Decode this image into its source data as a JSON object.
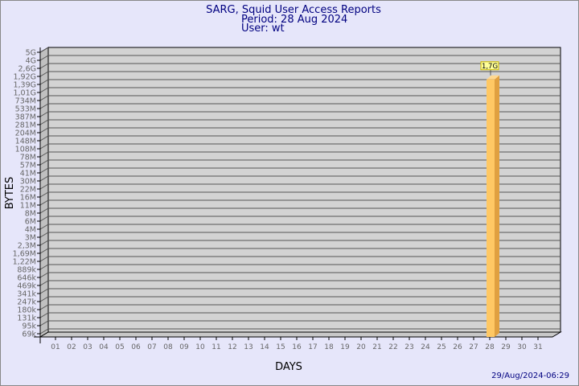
{
  "header": {
    "title": "SARG, Squid User Access Reports",
    "period": "Period: 28 Aug 2024",
    "user": "User: wt"
  },
  "footer": {
    "generated": "29/Aug/2024-06:29"
  },
  "colors": {
    "background": "#e6e6fa",
    "wall": "#d3d3d3",
    "bar": "#ffc864",
    "bar_side": "#e0a040",
    "text": "#000080",
    "label_bg": "#ffff99"
  },
  "chart_data": {
    "type": "bar",
    "title": "SARG, Squid User Access Reports",
    "xlabel": "DAYS",
    "ylabel": "BYTES",
    "y_scale": "log",
    "grid": true,
    "y_ticks": [
      "5G",
      "4G",
      "2,6G",
      "1,92G",
      "1,39G",
      "1,01G",
      "734M",
      "533M",
      "387M",
      "281M",
      "204M",
      "148M",
      "108M",
      "78M",
      "57M",
      "41M",
      "30M",
      "22M",
      "16M",
      "11M",
      "8M",
      "6M",
      "4M",
      "3M",
      "2,3M",
      "1,69M",
      "1,22M",
      "889k",
      "646k",
      "469k",
      "341k",
      "247k",
      "180k",
      "131k",
      "95k",
      "69k"
    ],
    "y_tick_values": [
      5000000000.0,
      4000000000.0,
      2600000000.0,
      1920000000.0,
      1390000000.0,
      1010000000.0,
      734000000.0,
      533000000.0,
      387000000.0,
      281000000.0,
      204000000.0,
      148000000.0,
      108000000.0,
      78000000.0,
      57000000.0,
      41000000.0,
      30000000.0,
      22000000.0,
      16000000.0,
      11000000.0,
      8000000.0,
      6000000.0,
      4000000.0,
      3000000.0,
      2300000.0,
      1690000.0,
      1220000.0,
      889000.0,
      646000.0,
      469000.0,
      341000.0,
      247000.0,
      180000.0,
      131000.0,
      95000.0,
      69000.0
    ],
    "categories": [
      "01",
      "02",
      "03",
      "04",
      "05",
      "06",
      "07",
      "08",
      "09",
      "10",
      "11",
      "12",
      "13",
      "14",
      "15",
      "16",
      "17",
      "18",
      "19",
      "20",
      "21",
      "22",
      "23",
      "24",
      "25",
      "26",
      "27",
      "28",
      "29",
      "30",
      "31"
    ],
    "bars": [
      {
        "day": "28",
        "value": 1700000000.0,
        "label": "1,7G"
      }
    ]
  }
}
